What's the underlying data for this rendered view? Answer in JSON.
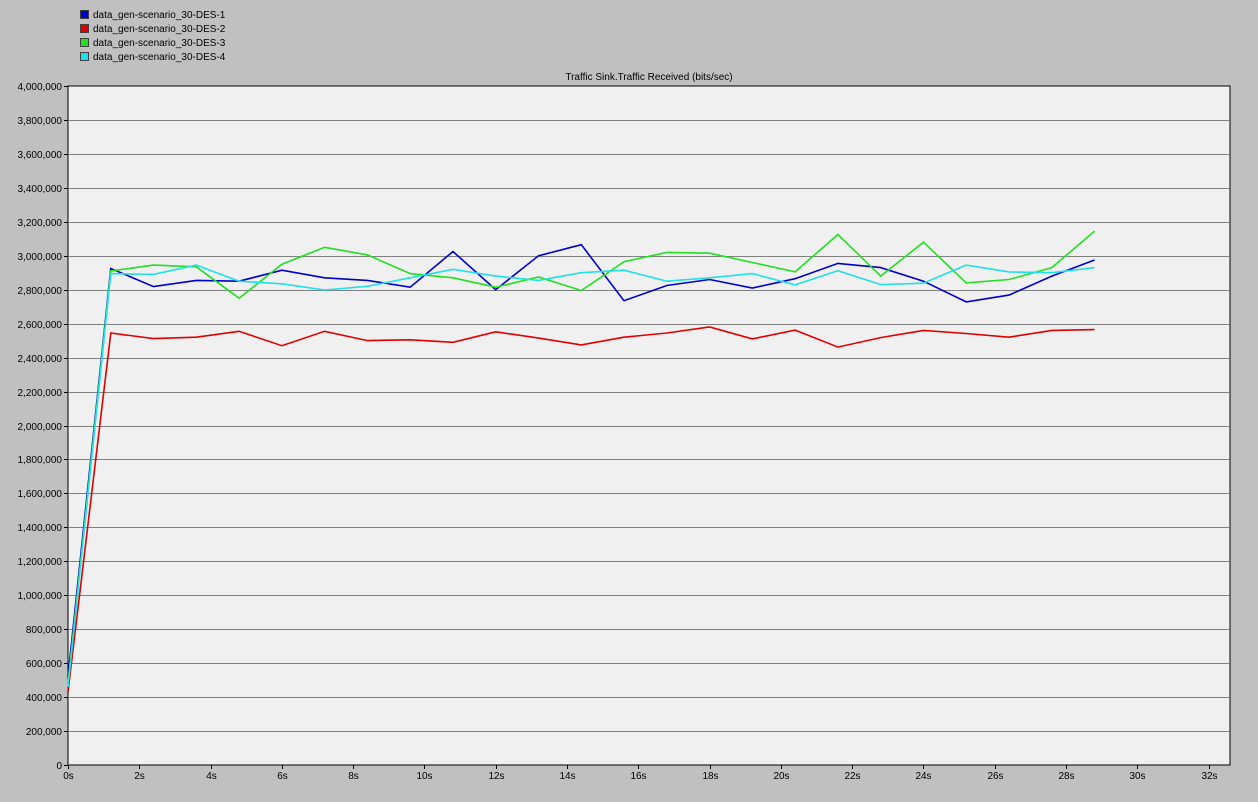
{
  "chart_data": {
    "type": "line",
    "title": "Traffic Sink.Traffic Received (bits/sec)",
    "xlabel": "",
    "ylabel": "",
    "xlim": [
      0,
      32.6
    ],
    "ylim": [
      0,
      4000000
    ],
    "y_ticks": [
      0,
      200000,
      400000,
      600000,
      800000,
      1000000,
      1200000,
      1400000,
      1600000,
      1800000,
      2000000,
      2200000,
      2400000,
      2600000,
      2800000,
      3000000,
      3200000,
      3400000,
      3600000,
      3800000,
      4000000
    ],
    "y_tick_labels": [
      "0",
      "200,000",
      "400,000",
      "600,000",
      "800,000",
      "1,000,000",
      "1,200,000",
      "1,400,000",
      "1,600,000",
      "1,800,000",
      "2,000,000",
      "2,200,000",
      "2,400,000",
      "2,600,000",
      "2,800,000",
      "3,000,000",
      "3,200,000",
      "3,400,000",
      "3,600,000",
      "3,800,000",
      "4,000,000"
    ],
    "x_ticks": [
      0,
      2,
      4,
      6,
      8,
      10,
      12,
      14,
      16,
      18,
      20,
      22,
      24,
      26,
      28,
      30,
      32
    ],
    "x_tick_labels": [
      "0s",
      "2s",
      "4s",
      "6s",
      "8s",
      "10s",
      "12s",
      "14s",
      "16s",
      "18s",
      "20s",
      "22s",
      "24s",
      "26s",
      "28s",
      "30s",
      "32s"
    ],
    "grid": "horizontal",
    "legend_position": "top-left",
    "x": [
      0,
      1.2,
      2.4,
      3.6,
      4.8,
      6.0,
      7.2,
      8.4,
      9.6,
      10.8,
      12.0,
      13.2,
      14.4,
      15.6,
      16.8,
      18.0,
      19.2,
      20.4,
      21.6,
      22.8,
      24.0,
      25.2,
      26.4,
      27.6,
      28.8
    ],
    "series": [
      {
        "name": "data_gen-scenario_30-DES-1",
        "color": "#0000cc",
        "values": [
          520000,
          2925000,
          2818000,
          2855000,
          2850000,
          2915000,
          2870000,
          2855000,
          2815000,
          3025000,
          2800000,
          3000000,
          3065000,
          2735000,
          2825000,
          2860000,
          2810000,
          2865000,
          2955000,
          2930000,
          2850000,
          2728000,
          2768000,
          2880000,
          2975000
        ]
      },
      {
        "name": "data_gen-scenario_30-DES-2",
        "color": "#e00000",
        "values": [
          430000,
          2545000,
          2512000,
          2520000,
          2555000,
          2470000,
          2555000,
          2500000,
          2505000,
          2490000,
          2552000,
          2515000,
          2475000,
          2520000,
          2545000,
          2580000,
          2510000,
          2562000,
          2462000,
          2518000,
          2560000,
          2542000,
          2520000,
          2560000,
          2565000
        ]
      },
      {
        "name": "data_gen-scenario_30-DES-3",
        "color": "#20e020",
        "values": [
          480000,
          2910000,
          2945000,
          2935000,
          2750000,
          2950000,
          3050000,
          3005000,
          2895000,
          2870000,
          2815000,
          2875000,
          2795000,
          2965000,
          3020000,
          3015000,
          2960000,
          2905000,
          3125000,
          2880000,
          3080000,
          2840000,
          2860000,
          2930000,
          3145000
        ]
      },
      {
        "name": "data_gen-scenario_30-DES-4",
        "color": "#20e0e8",
        "values": [
          460000,
          2895000,
          2890000,
          2945000,
          2850000,
          2835000,
          2798000,
          2820000,
          2870000,
          2920000,
          2880000,
          2855000,
          2900000,
          2915000,
          2850000,
          2870000,
          2895000,
          2828000,
          2912000,
          2830000,
          2838000,
          2945000,
          2905000,
          2900000,
          2930000
        ]
      }
    ]
  }
}
